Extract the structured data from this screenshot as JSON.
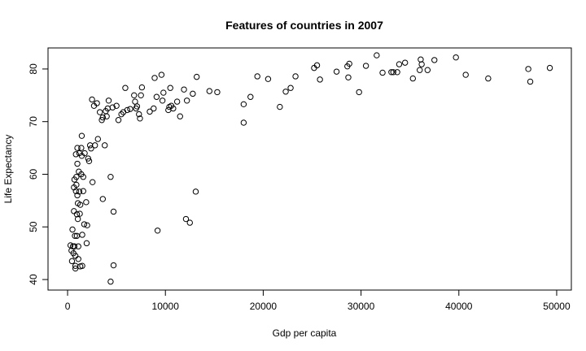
{
  "chart_data": {
    "type": "scatter",
    "title": "Features of countries in 2007",
    "xlabel": "Gdp per capita",
    "ylabel": "Life Expectancy",
    "xlim": [
      -2000,
      51500
    ],
    "ylim": [
      38,
      84
    ],
    "xticks": [
      0,
      10000,
      20000,
      30000,
      40000,
      50000
    ],
    "yticks": [
      40,
      50,
      60,
      70,
      80
    ],
    "grid": false,
    "legend": "none",
    "marker": "open-circle",
    "points": [
      [
        300,
        46.5
      ],
      [
        400,
        45.5
      ],
      [
        450,
        43.5
      ],
      [
        500,
        49.5
      ],
      [
        550,
        46.3
      ],
      [
        600,
        45
      ],
      [
        650,
        53
      ],
      [
        650,
        57.5
      ],
      [
        700,
        59
      ],
      [
        700,
        46.3
      ],
      [
        750,
        48.3
      ],
      [
        800,
        44.5
      ],
      [
        800,
        42.6
      ],
      [
        800,
        42.1
      ],
      [
        850,
        56.8
      ],
      [
        850,
        63.8
      ],
      [
        900,
        59.5
      ],
      [
        900,
        58
      ],
      [
        950,
        52.4
      ],
      [
        950,
        48.3
      ],
      [
        1000,
        65
      ],
      [
        1000,
        62
      ],
      [
        1000,
        56
      ],
      [
        1050,
        54.5
      ],
      [
        1050,
        51.5
      ],
      [
        1100,
        43.9
      ],
      [
        1100,
        46.3
      ],
      [
        1150,
        60.5
      ],
      [
        1200,
        64
      ],
      [
        1200,
        56.7
      ],
      [
        1250,
        52.5
      ],
      [
        1300,
        42.5
      ],
      [
        1300,
        54.2
      ],
      [
        1400,
        65
      ],
      [
        1400,
        60
      ],
      [
        1450,
        63.5
      ],
      [
        1450,
        67.3
      ],
      [
        1500,
        48.5
      ],
      [
        1500,
        42.6
      ],
      [
        1600,
        59.5
      ],
      [
        1600,
        56.8
      ],
      [
        1700,
        50.5
      ],
      [
        1750,
        64
      ],
      [
        1900,
        54.7
      ],
      [
        1950,
        46.9
      ],
      [
        2000,
        50.3
      ],
      [
        2100,
        63
      ],
      [
        2200,
        62.5
      ],
      [
        2300,
        65.5
      ],
      [
        2400,
        64.9
      ],
      [
        2500,
        74.2
      ],
      [
        2550,
        58.5
      ],
      [
        2700,
        73
      ],
      [
        2800,
        65.5
      ],
      [
        3000,
        73.5
      ],
      [
        3100,
        66.7
      ],
      [
        3300,
        71.8
      ],
      [
        3500,
        70.3
      ],
      [
        3600,
        55.3
      ],
      [
        3600,
        70.8
      ],
      [
        3800,
        65.5
      ],
      [
        3900,
        72
      ],
      [
        4000,
        71
      ],
      [
        4100,
        72.5
      ],
      [
        4200,
        74
      ],
      [
        4400,
        59.5
      ],
      [
        4400,
        39.6
      ],
      [
        4600,
        72.7
      ],
      [
        4700,
        52.9
      ],
      [
        4700,
        42.7
      ],
      [
        5000,
        73
      ],
      [
        5200,
        70.3
      ],
      [
        5500,
        71.4
      ],
      [
        5700,
        71.8
      ],
      [
        5900,
        76.4
      ],
      [
        6100,
        72.2
      ],
      [
        6400,
        72.4
      ],
      [
        6800,
        75
      ],
      [
        6900,
        73.8
      ],
      [
        7000,
        72.5
      ],
      [
        7100,
        72.9
      ],
      [
        7300,
        71.4
      ],
      [
        7400,
        70.6
      ],
      [
        7600,
        76.5
      ],
      [
        7500,
        75
      ],
      [
        8400,
        71.9
      ],
      [
        8800,
        72.5
      ],
      [
        8900,
        78.3
      ],
      [
        9100,
        74.7
      ],
      [
        9200,
        49.3
      ],
      [
        9600,
        78.9
      ],
      [
        9700,
        74
      ],
      [
        9800,
        75.5
      ],
      [
        10300,
        72.2
      ],
      [
        10400,
        72.8
      ],
      [
        10500,
        76.4
      ],
      [
        10600,
        73
      ],
      [
        10800,
        72.5
      ],
      [
        11200,
        73.8
      ],
      [
        11500,
        71
      ],
      [
        11900,
        76.1
      ],
      [
        12100,
        51.5
      ],
      [
        12200,
        74
      ],
      [
        12500,
        50.8
      ],
      [
        12800,
        75.3
      ],
      [
        13100,
        56.7
      ],
      [
        13200,
        78.5
      ],
      [
        14500,
        75.8
      ],
      [
        15300,
        75.6
      ],
      [
        18000,
        73.3
      ],
      [
        18000,
        69.8
      ],
      [
        18700,
        74.7
      ],
      [
        19400,
        78.6
      ],
      [
        20500,
        78.1
      ],
      [
        21700,
        72.8
      ],
      [
        22300,
        75.7
      ],
      [
        22800,
        76.4
      ],
      [
        23300,
        78.6
      ],
      [
        25200,
        80.2
      ],
      [
        25500,
        80.7
      ],
      [
        25800,
        78
      ],
      [
        27500,
        79.5
      ],
      [
        28600,
        80.5
      ],
      [
        28700,
        78.4
      ],
      [
        28800,
        81
      ],
      [
        29800,
        75.6
      ],
      [
        30500,
        80.6
      ],
      [
        31600,
        82.6
      ],
      [
        32200,
        79.3
      ],
      [
        33100,
        79.4
      ],
      [
        33300,
        79.4
      ],
      [
        33700,
        79.4
      ],
      [
        33900,
        80.9
      ],
      [
        34500,
        81.2
      ],
      [
        35300,
        78.2
      ],
      [
        36000,
        79.8
      ],
      [
        36100,
        81.8
      ],
      [
        36200,
        80.9
      ],
      [
        36800,
        79.8
      ],
      [
        37500,
        81.7
      ],
      [
        39700,
        82.2
      ],
      [
        40700,
        78.9
      ],
      [
        43000,
        78.2
      ],
      [
        47100,
        80
      ],
      [
        47300,
        77.6
      ],
      [
        49300,
        80.2
      ]
    ]
  }
}
